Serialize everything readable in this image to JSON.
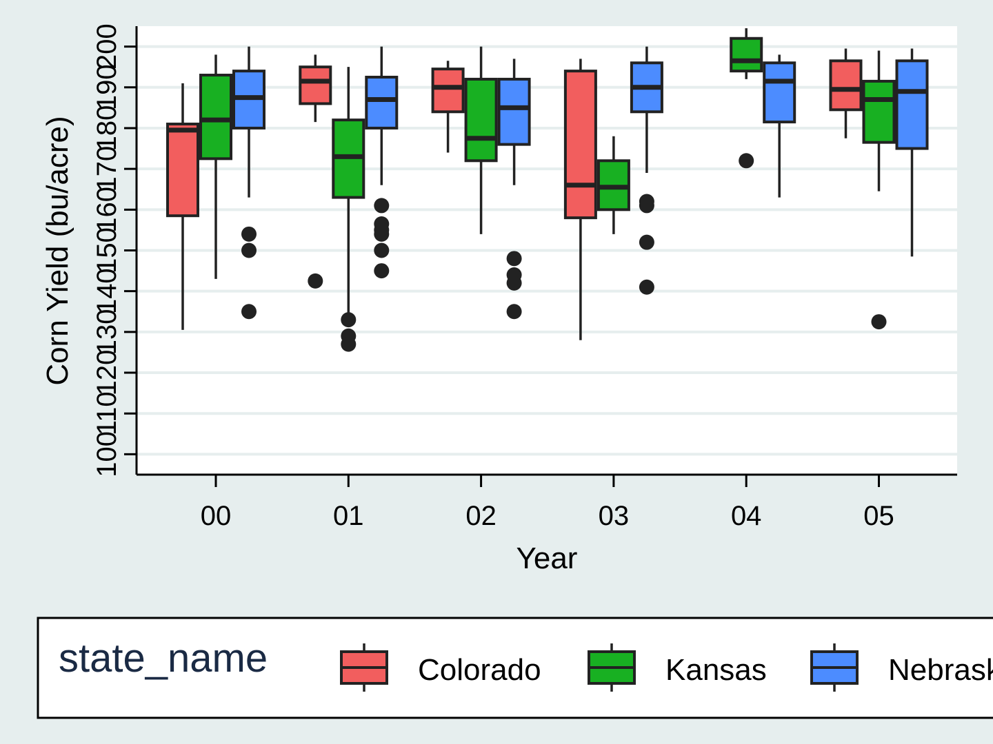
{
  "chart_data": {
    "type": "boxplot",
    "xlabel": "Year",
    "ylabel": "Corn Yield (bu/acre)",
    "categories": [
      "00",
      "01",
      "02",
      "03",
      "04",
      "05"
    ],
    "y_ticks": [
      "100",
      "110",
      "120",
      "130",
      "140",
      "150",
      "160",
      "170",
      "180",
      "190",
      "200"
    ],
    "ylim": [
      95,
      205
    ],
    "grid": true,
    "legend": {
      "title": "state_name",
      "placement": "bottom"
    },
    "series": [
      {
        "name": "Colorado",
        "color": "#f25e5e",
        "boxes": [
          {
            "cat": "00",
            "whisker_low": 130.5,
            "q1": 158.5,
            "median": 179.5,
            "q3": 181,
            "whisker_high": 191,
            "outliers": []
          },
          {
            "cat": "01",
            "whisker_low": 181.5,
            "q1": 186,
            "median": 191.5,
            "q3": 195,
            "whisker_high": 198,
            "outliers": [
              142.5
            ]
          },
          {
            "cat": "02",
            "whisker_low": 174,
            "q1": 184,
            "median": 190,
            "q3": 194.5,
            "whisker_high": 196.5,
            "outliers": []
          },
          {
            "cat": "03",
            "whisker_low": 128,
            "q1": 158,
            "median": 166,
            "q3": 194,
            "whisker_high": 197,
            "outliers": []
          },
          {
            "cat": "05",
            "whisker_low": 177.5,
            "q1": 184.5,
            "median": 189.5,
            "q3": 196.5,
            "whisker_high": 199.5,
            "outliers": []
          }
        ]
      },
      {
        "name": "Kansas",
        "color": "#18b022",
        "boxes": [
          {
            "cat": "00",
            "whisker_low": 143,
            "q1": 172.5,
            "median": 182,
            "q3": 193,
            "whisker_high": 198,
            "outliers": []
          },
          {
            "cat": "01",
            "whisker_low": 133.5,
            "q1": 163,
            "median": 173,
            "q3": 182,
            "whisker_high": 195,
            "outliers": [
              133,
              129,
              127
            ]
          },
          {
            "cat": "02",
            "whisker_low": 154,
            "q1": 172,
            "median": 177.5,
            "q3": 192,
            "whisker_high": 200,
            "outliers": []
          },
          {
            "cat": "03",
            "whisker_low": 154,
            "q1": 160,
            "median": 165.5,
            "q3": 172,
            "whisker_high": 178,
            "outliers": []
          },
          {
            "cat": "04",
            "whisker_low": 192,
            "q1": 194,
            "median": 196.5,
            "q3": 202,
            "whisker_high": 204.5,
            "outliers": [
              172
            ]
          },
          {
            "cat": "05",
            "whisker_low": 164.5,
            "q1": 176.5,
            "median": 187,
            "q3": 191.5,
            "whisker_high": 199,
            "outliers": [
              132.5
            ]
          }
        ]
      },
      {
        "name": "Nebraska",
        "color": "#4c8cff",
        "boxes": [
          {
            "cat": "00",
            "whisker_low": 163,
            "q1": 180,
            "median": 187.5,
            "q3": 194,
            "whisker_high": 200,
            "outliers": [
              154,
              150,
              135
            ]
          },
          {
            "cat": "01",
            "whisker_low": 166,
            "q1": 180,
            "median": 187,
            "q3": 192.5,
            "whisker_high": 200,
            "outliers": [
              161,
              156.5,
              155,
              154,
              150,
              145
            ]
          },
          {
            "cat": "02",
            "whisker_low": 166,
            "q1": 176,
            "median": 185,
            "q3": 192,
            "whisker_high": 197,
            "outliers": [
              148,
              144,
              142,
              135
            ]
          },
          {
            "cat": "03",
            "whisker_low": 169,
            "q1": 184,
            "median": 190,
            "q3": 196,
            "whisker_high": 200,
            "outliers": [
              162,
              161,
              152,
              141
            ]
          },
          {
            "cat": "04",
            "whisker_low": 163,
            "q1": 181.5,
            "median": 191.5,
            "q3": 196,
            "whisker_high": 198,
            "outliers": []
          },
          {
            "cat": "05",
            "whisker_low": 148.5,
            "q1": 175,
            "median": 189,
            "q3": 196.5,
            "whisker_high": 199.5,
            "outliers": []
          }
        ]
      }
    ]
  }
}
